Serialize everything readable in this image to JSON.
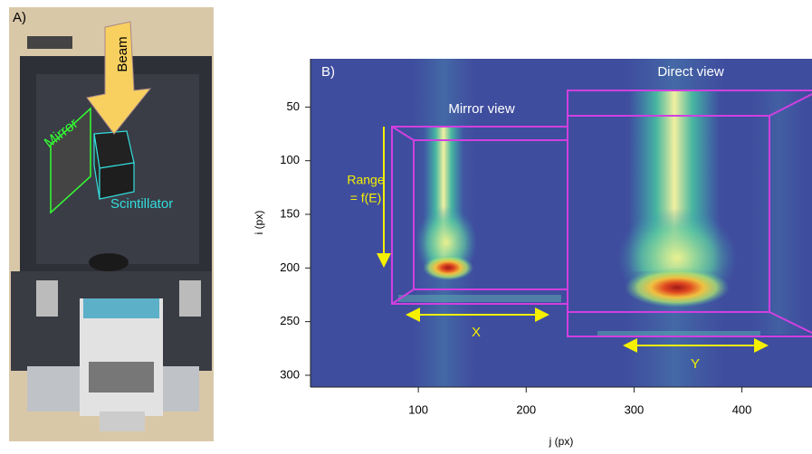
{
  "panel_a": {
    "label": "A)",
    "beam": "Beam",
    "mirror": "Mirror",
    "scintillator": "Scintillator"
  },
  "chart_data": {
    "type": "image",
    "title": "B)",
    "xlabel": "j (px)",
    "ylabel": "i (px)",
    "xlim": [
      0,
      465
    ],
    "ylim": [
      311,
      5
    ],
    "xticks": [
      100,
      200,
      300,
      400
    ],
    "yticks": [
      50,
      100,
      150,
      200,
      250,
      300
    ],
    "annotations": {
      "mirror_view": "Mirror view",
      "direct_view": "Direct view",
      "range": [
        "Range",
        "= f(E)"
      ],
      "x": "X",
      "y": "Y"
    }
  }
}
